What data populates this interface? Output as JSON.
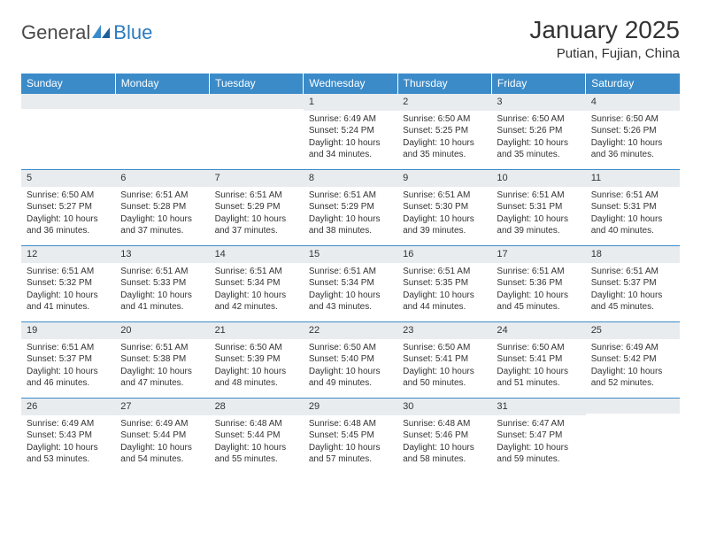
{
  "brand": {
    "part1": "General",
    "part2": "Blue"
  },
  "title": "January 2025",
  "location": "Putian, Fujian, China",
  "colors": {
    "header_bg": "#3b8bc9",
    "header_text": "#ffffff",
    "daynum_bg": "#e9ecef",
    "border": "#3b8bc9",
    "text": "#333333",
    "brand_gray": "#4a4a4a",
    "brand_blue": "#2b7bbf"
  },
  "weekdays": [
    "Sunday",
    "Monday",
    "Tuesday",
    "Wednesday",
    "Thursday",
    "Friday",
    "Saturday"
  ],
  "weeks": [
    [
      {
        "n": "",
        "sunrise": "",
        "sunset": "",
        "daylight": ""
      },
      {
        "n": "",
        "sunrise": "",
        "sunset": "",
        "daylight": ""
      },
      {
        "n": "",
        "sunrise": "",
        "sunset": "",
        "daylight": ""
      },
      {
        "n": "1",
        "sunrise": "Sunrise: 6:49 AM",
        "sunset": "Sunset: 5:24 PM",
        "daylight": "Daylight: 10 hours and 34 minutes."
      },
      {
        "n": "2",
        "sunrise": "Sunrise: 6:50 AM",
        "sunset": "Sunset: 5:25 PM",
        "daylight": "Daylight: 10 hours and 35 minutes."
      },
      {
        "n": "3",
        "sunrise": "Sunrise: 6:50 AM",
        "sunset": "Sunset: 5:26 PM",
        "daylight": "Daylight: 10 hours and 35 minutes."
      },
      {
        "n": "4",
        "sunrise": "Sunrise: 6:50 AM",
        "sunset": "Sunset: 5:26 PM",
        "daylight": "Daylight: 10 hours and 36 minutes."
      }
    ],
    [
      {
        "n": "5",
        "sunrise": "Sunrise: 6:50 AM",
        "sunset": "Sunset: 5:27 PM",
        "daylight": "Daylight: 10 hours and 36 minutes."
      },
      {
        "n": "6",
        "sunrise": "Sunrise: 6:51 AM",
        "sunset": "Sunset: 5:28 PM",
        "daylight": "Daylight: 10 hours and 37 minutes."
      },
      {
        "n": "7",
        "sunrise": "Sunrise: 6:51 AM",
        "sunset": "Sunset: 5:29 PM",
        "daylight": "Daylight: 10 hours and 37 minutes."
      },
      {
        "n": "8",
        "sunrise": "Sunrise: 6:51 AM",
        "sunset": "Sunset: 5:29 PM",
        "daylight": "Daylight: 10 hours and 38 minutes."
      },
      {
        "n": "9",
        "sunrise": "Sunrise: 6:51 AM",
        "sunset": "Sunset: 5:30 PM",
        "daylight": "Daylight: 10 hours and 39 minutes."
      },
      {
        "n": "10",
        "sunrise": "Sunrise: 6:51 AM",
        "sunset": "Sunset: 5:31 PM",
        "daylight": "Daylight: 10 hours and 39 minutes."
      },
      {
        "n": "11",
        "sunrise": "Sunrise: 6:51 AM",
        "sunset": "Sunset: 5:31 PM",
        "daylight": "Daylight: 10 hours and 40 minutes."
      }
    ],
    [
      {
        "n": "12",
        "sunrise": "Sunrise: 6:51 AM",
        "sunset": "Sunset: 5:32 PM",
        "daylight": "Daylight: 10 hours and 41 minutes."
      },
      {
        "n": "13",
        "sunrise": "Sunrise: 6:51 AM",
        "sunset": "Sunset: 5:33 PM",
        "daylight": "Daylight: 10 hours and 41 minutes."
      },
      {
        "n": "14",
        "sunrise": "Sunrise: 6:51 AM",
        "sunset": "Sunset: 5:34 PM",
        "daylight": "Daylight: 10 hours and 42 minutes."
      },
      {
        "n": "15",
        "sunrise": "Sunrise: 6:51 AM",
        "sunset": "Sunset: 5:34 PM",
        "daylight": "Daylight: 10 hours and 43 minutes."
      },
      {
        "n": "16",
        "sunrise": "Sunrise: 6:51 AM",
        "sunset": "Sunset: 5:35 PM",
        "daylight": "Daylight: 10 hours and 44 minutes."
      },
      {
        "n": "17",
        "sunrise": "Sunrise: 6:51 AM",
        "sunset": "Sunset: 5:36 PM",
        "daylight": "Daylight: 10 hours and 45 minutes."
      },
      {
        "n": "18",
        "sunrise": "Sunrise: 6:51 AM",
        "sunset": "Sunset: 5:37 PM",
        "daylight": "Daylight: 10 hours and 45 minutes."
      }
    ],
    [
      {
        "n": "19",
        "sunrise": "Sunrise: 6:51 AM",
        "sunset": "Sunset: 5:37 PM",
        "daylight": "Daylight: 10 hours and 46 minutes."
      },
      {
        "n": "20",
        "sunrise": "Sunrise: 6:51 AM",
        "sunset": "Sunset: 5:38 PM",
        "daylight": "Daylight: 10 hours and 47 minutes."
      },
      {
        "n": "21",
        "sunrise": "Sunrise: 6:50 AM",
        "sunset": "Sunset: 5:39 PM",
        "daylight": "Daylight: 10 hours and 48 minutes."
      },
      {
        "n": "22",
        "sunrise": "Sunrise: 6:50 AM",
        "sunset": "Sunset: 5:40 PM",
        "daylight": "Daylight: 10 hours and 49 minutes."
      },
      {
        "n": "23",
        "sunrise": "Sunrise: 6:50 AM",
        "sunset": "Sunset: 5:41 PM",
        "daylight": "Daylight: 10 hours and 50 minutes."
      },
      {
        "n": "24",
        "sunrise": "Sunrise: 6:50 AM",
        "sunset": "Sunset: 5:41 PM",
        "daylight": "Daylight: 10 hours and 51 minutes."
      },
      {
        "n": "25",
        "sunrise": "Sunrise: 6:49 AM",
        "sunset": "Sunset: 5:42 PM",
        "daylight": "Daylight: 10 hours and 52 minutes."
      }
    ],
    [
      {
        "n": "26",
        "sunrise": "Sunrise: 6:49 AM",
        "sunset": "Sunset: 5:43 PM",
        "daylight": "Daylight: 10 hours and 53 minutes."
      },
      {
        "n": "27",
        "sunrise": "Sunrise: 6:49 AM",
        "sunset": "Sunset: 5:44 PM",
        "daylight": "Daylight: 10 hours and 54 minutes."
      },
      {
        "n": "28",
        "sunrise": "Sunrise: 6:48 AM",
        "sunset": "Sunset: 5:44 PM",
        "daylight": "Daylight: 10 hours and 55 minutes."
      },
      {
        "n": "29",
        "sunrise": "Sunrise: 6:48 AM",
        "sunset": "Sunset: 5:45 PM",
        "daylight": "Daylight: 10 hours and 57 minutes."
      },
      {
        "n": "30",
        "sunrise": "Sunrise: 6:48 AM",
        "sunset": "Sunset: 5:46 PM",
        "daylight": "Daylight: 10 hours and 58 minutes."
      },
      {
        "n": "31",
        "sunrise": "Sunrise: 6:47 AM",
        "sunset": "Sunset: 5:47 PM",
        "daylight": "Daylight: 10 hours and 59 minutes."
      },
      {
        "n": "",
        "sunrise": "",
        "sunset": "",
        "daylight": ""
      }
    ]
  ]
}
